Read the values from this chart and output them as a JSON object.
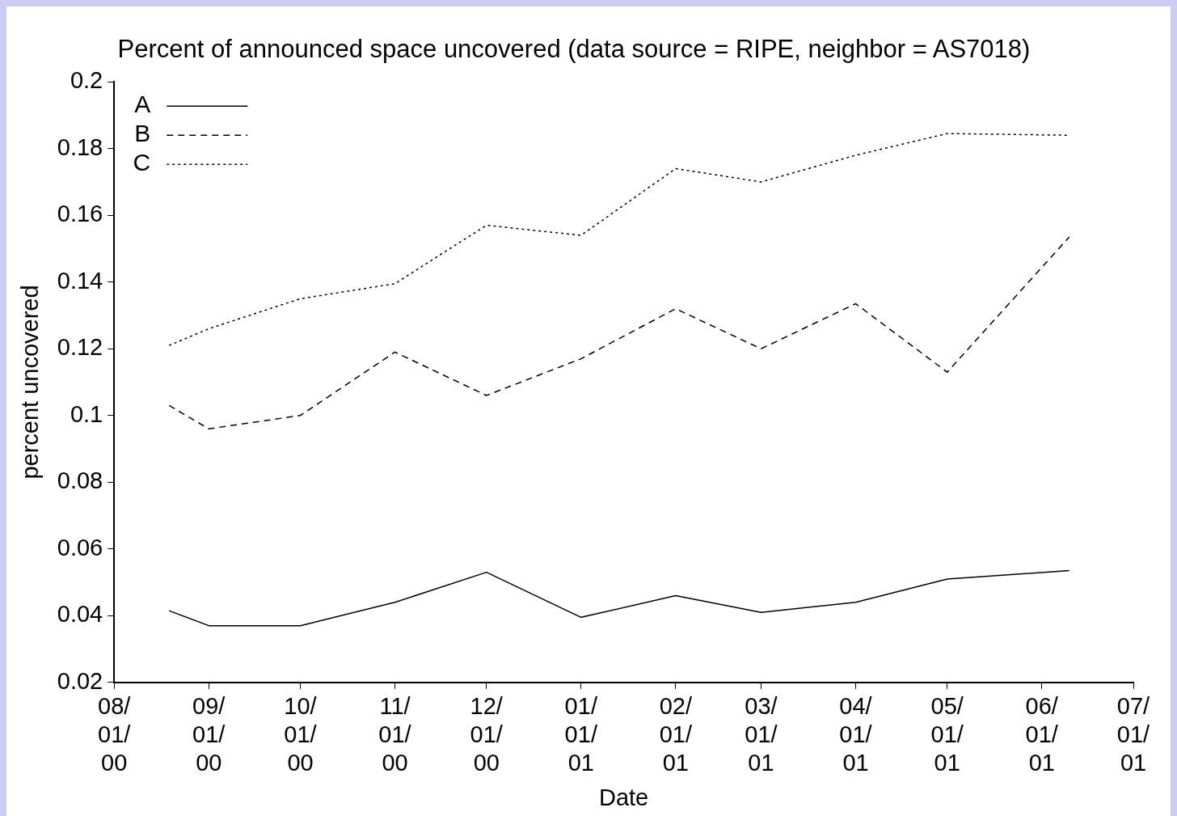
{
  "chart_data": {
    "type": "line",
    "title": "Percent of announced space uncovered (data source = RIPE, neighbor = AS7018)",
    "xlabel": "Date",
    "ylabel": "percent uncovered",
    "x": [
      "2000-08-19",
      "2000-09-01",
      "2000-10-01",
      "2000-11-01",
      "2000-12-01",
      "2001-01-01",
      "2001-02-01",
      "2001-03-01",
      "2001-04-01",
      "2001-05-01",
      "2001-06-10"
    ],
    "series": [
      {
        "name": "A",
        "color": "#000000",
        "line_style": "solid",
        "values": [
          0.0415,
          0.037,
          0.037,
          0.044,
          0.053,
          0.0395,
          0.046,
          0.041,
          0.044,
          0.051,
          0.0535
        ]
      },
      {
        "name": "B",
        "color": "#000000",
        "line_style": "dashed",
        "values": [
          0.103,
          0.096,
          0.1,
          0.119,
          0.106,
          0.117,
          0.132,
          0.12,
          0.1335,
          0.113,
          0.1535
        ]
      },
      {
        "name": "C",
        "color": "#000000",
        "line_style": "dotted",
        "values": [
          0.121,
          0.126,
          0.135,
          0.1395,
          0.157,
          0.154,
          0.174,
          0.17,
          0.178,
          0.1845,
          0.184
        ]
      }
    ],
    "xlim": [
      "2000-08-01",
      "2001-07-01"
    ],
    "xticks": [
      {
        "value": "2000-08-01",
        "label": "08/\n01/\n00"
      },
      {
        "value": "2000-09-01",
        "label": "09/\n01/\n00"
      },
      {
        "value": "2000-10-01",
        "label": "10/\n01/\n00"
      },
      {
        "value": "2000-11-01",
        "label": "11/\n01/\n00"
      },
      {
        "value": "2000-12-01",
        "label": "12/\n01/\n00"
      },
      {
        "value": "2001-01-01",
        "label": "01/\n01/\n01"
      },
      {
        "value": "2001-02-01",
        "label": "02/\n01/\n01"
      },
      {
        "value": "2001-03-01",
        "label": "03/\n01/\n01"
      },
      {
        "value": "2001-04-01",
        "label": "04/\n01/\n01"
      },
      {
        "value": "2001-05-01",
        "label": "05/\n01/\n01"
      },
      {
        "value": "2001-06-01",
        "label": "06/\n01/\n01"
      },
      {
        "value": "2001-07-01",
        "label": "07/\n01/\n01"
      }
    ],
    "ylim": [
      0.02,
      0.2
    ],
    "yticks": [
      0.02,
      0.04,
      0.06,
      0.08,
      0.1,
      0.12,
      0.14,
      0.16,
      0.18,
      0.2
    ],
    "legend": "top left",
    "grid": false
  }
}
